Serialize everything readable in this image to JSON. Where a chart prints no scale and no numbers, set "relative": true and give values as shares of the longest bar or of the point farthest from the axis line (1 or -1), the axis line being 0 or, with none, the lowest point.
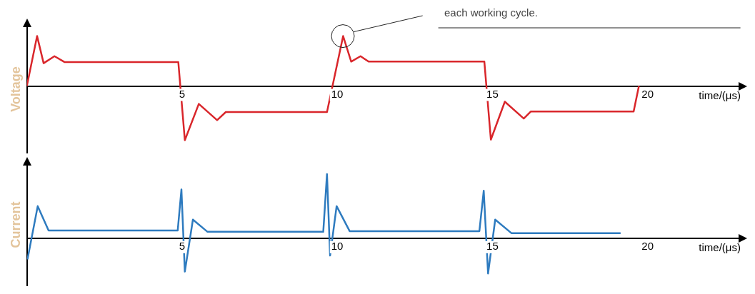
{
  "chart_data": [
    {
      "type": "line",
      "ylabel": "Voltage",
      "xlabel": "time/(μs)",
      "relative": true,
      "xlim": [
        0,
        23
      ],
      "xticks": [
        5,
        10,
        15,
        20
      ],
      "annotations": [
        "each working cycle."
      ],
      "series": [
        {
          "color": "#d9262b",
          "x": [
            0,
            0.33,
            0.54,
            0.89,
            1.22,
            4.88,
            5.09,
            5.54,
            6.13,
            6.41,
            9.67,
            10.19,
            10.45,
            10.75,
            11.01,
            14.74,
            14.95,
            15.4,
            16.01,
            16.24,
            19.55,
            19.72
          ],
          "values": [
            0,
            0.92,
            0.42,
            0.55,
            0.44,
            0.44,
            -1,
            -0.33,
            -0.63,
            -0.48,
            -0.48,
            0.92,
            0.45,
            0.55,
            0.45,
            0.45,
            -0.99,
            -0.29,
            -0.6,
            -0.47,
            -0.47,
            0
          ]
        }
      ]
    },
    {
      "type": "line",
      "ylabel": "Current",
      "xlabel": "time/(μs)",
      "relative": true,
      "xlim": [
        0,
        23
      ],
      "xticks": [
        5,
        10,
        15,
        20
      ],
      "series": [
        {
          "color": "#2e7bbf",
          "x": [
            0.02,
            0.35,
            0.7,
            4.86,
            4.98,
            5.09,
            5.35,
            5.82,
            9.55,
            9.67,
            9.77,
            9.98,
            10.4,
            14.58,
            14.72,
            14.86,
            15.09,
            15.61,
            19.13
          ],
          "values": [
            -0.33,
            0.5,
            0.12,
            0.12,
            0.76,
            -0.52,
            0.29,
            0.1,
            0.1,
            1,
            -0.27,
            0.5,
            0.11,
            0.11,
            0.74,
            -0.55,
            0.29,
            0.08,
            0.08
          ]
        }
      ]
    }
  ]
}
